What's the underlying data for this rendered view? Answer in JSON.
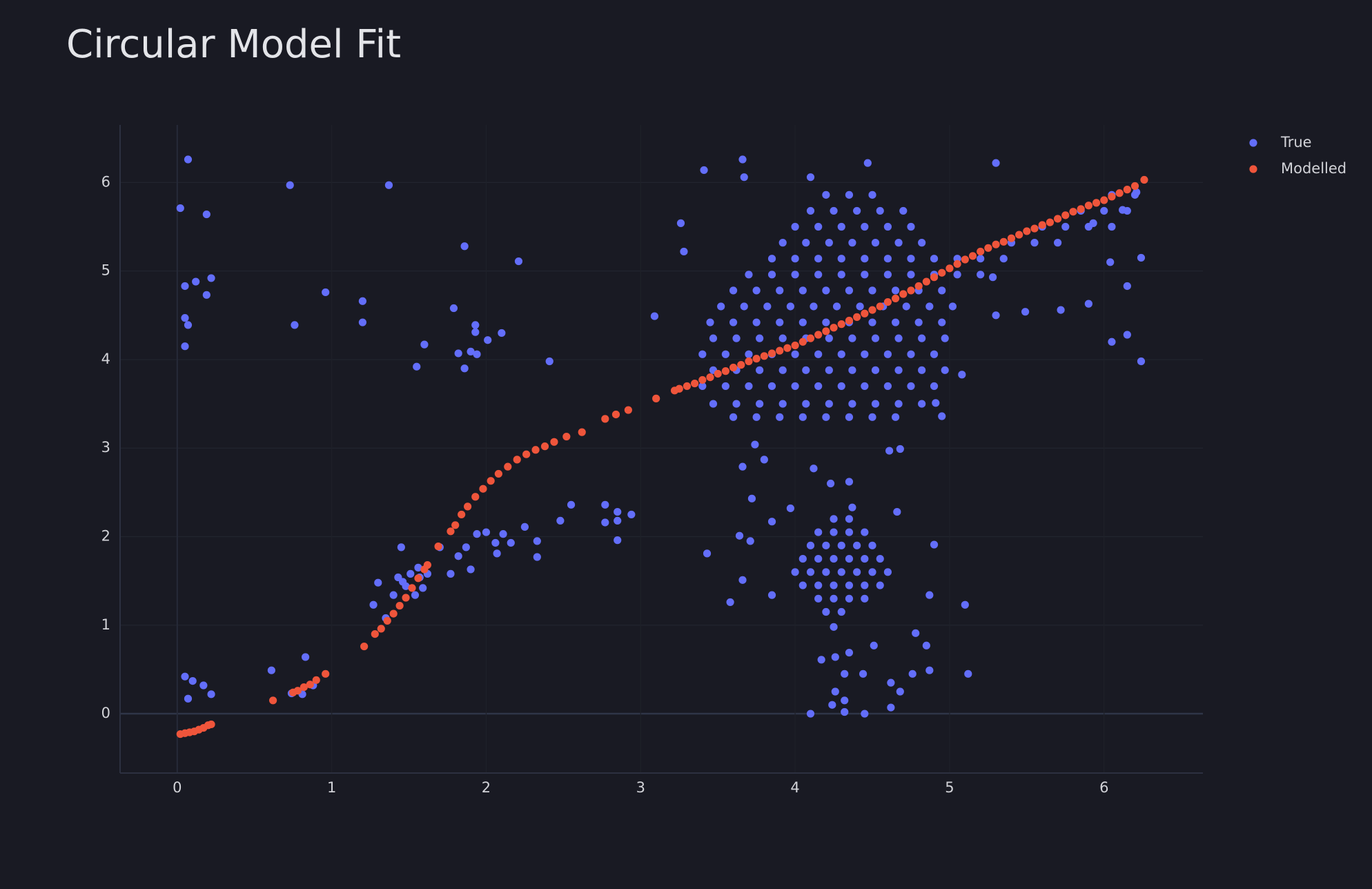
{
  "chart_data": {
    "type": "scatter",
    "title": "Circular Model Fit",
    "xlim": [
      -0.37,
      6.64
    ],
    "ylim": [
      -0.67,
      6.65
    ],
    "xticks": [
      0,
      1,
      2,
      3,
      4,
      5,
      6
    ],
    "yticks": [
      0,
      1,
      2,
      3,
      4,
      5,
      6
    ],
    "grid": true,
    "legend": "right",
    "series": [
      {
        "name": "True",
        "color": "#636efa",
        "x": [
          0.02,
          0.07,
          0.19,
          0.05,
          0.12,
          0.22,
          0.19,
          0.05,
          0.07,
          0.05,
          0.73,
          1.37,
          0.96,
          0.76,
          1.2,
          1.2,
          1.86,
          2.21,
          1.79,
          1.93,
          1.93,
          2.01,
          2.1,
          1.82,
          1.9,
          1.94,
          1.86,
          1.6,
          1.55,
          2.41,
          3.09,
          0.05,
          0.1,
          0.17,
          0.22,
          0.07,
          0.61,
          0.83,
          0.74,
          0.81,
          0.88,
          1.45,
          1.3,
          1.27,
          1.35,
          1.4,
          1.46,
          1.51,
          1.56,
          1.59,
          1.54,
          1.48,
          1.62,
          1.43,
          1.57,
          1.7,
          1.77,
          1.82,
          1.87,
          1.9,
          1.94,
          2.0,
          2.06,
          2.07,
          2.11,
          2.16,
          2.25,
          2.33,
          2.33,
          2.48,
          2.55,
          2.77,
          2.85,
          2.85,
          2.94,
          2.85,
          2.77,
          3.6,
          3.75,
          3.9,
          4.05,
          4.2,
          4.35,
          4.5,
          4.65,
          3.47,
          3.62,
          3.77,
          3.92,
          4.07,
          4.22,
          4.37,
          4.52,
          4.67,
          4.82,
          3.4,
          3.55,
          3.7,
          3.85,
          4.0,
          4.15,
          4.3,
          4.45,
          4.6,
          4.75,
          4.9,
          3.47,
          3.62,
          3.77,
          3.92,
          4.07,
          4.22,
          4.37,
          4.52,
          4.67,
          4.82,
          4.97,
          3.4,
          3.55,
          3.7,
          3.85,
          4.0,
          4.15,
          4.3,
          4.45,
          4.6,
          4.75,
          4.9,
          3.47,
          3.62,
          3.77,
          3.92,
          4.07,
          4.22,
          4.37,
          4.52,
          4.67,
          4.82,
          4.97,
          3.45,
          3.6,
          3.75,
          3.9,
          4.05,
          4.2,
          4.35,
          4.5,
          4.65,
          4.8,
          4.95,
          3.52,
          3.67,
          3.82,
          3.97,
          4.12,
          4.27,
          4.42,
          4.57,
          4.72,
          4.87,
          5.02,
          3.6,
          3.75,
          3.9,
          4.05,
          4.2,
          4.35,
          4.5,
          4.65,
          4.8,
          4.95,
          3.7,
          3.85,
          4.0,
          4.15,
          4.3,
          4.45,
          4.6,
          4.75,
          4.9,
          5.05,
          5.2,
          3.85,
          4.0,
          4.15,
          4.3,
          4.45,
          4.6,
          4.75,
          4.9,
          5.05,
          5.2,
          5.35,
          3.92,
          4.07,
          4.22,
          4.37,
          4.52,
          4.67,
          4.82,
          5.4,
          5.55,
          5.7,
          4.0,
          4.15,
          4.3,
          4.45,
          4.6,
          4.75,
          5.6,
          5.75,
          5.9,
          6.05,
          4.1,
          4.25,
          4.4,
          4.55,
          4.7,
          5.85,
          6.0,
          6.15,
          4.2,
          4.35,
          4.5,
          6.05,
          6.2,
          3.41,
          3.66,
          3.67,
          4.1,
          4.47,
          5.3,
          3.26,
          3.28,
          5.49,
          5.3,
          6.04,
          6.15,
          6.24,
          6.05,
          6.15,
          6.24,
          5.9,
          5.72,
          5.08,
          4.91,
          4.95,
          4.61,
          4.68,
          5.28,
          6.21,
          6.12,
          5.93,
          3.74,
          3.66,
          3.8,
          3.72,
          3.85,
          3.97,
          3.43,
          3.64,
          3.71,
          3.66,
          3.58,
          3.85,
          4.12,
          4.23,
          4.35,
          4.37,
          4.66,
          4.9,
          4.87,
          5.1,
          4.78,
          4.85,
          4.87,
          5.12,
          4.76,
          4.62,
          4.68,
          4.62,
          4.17,
          4.26,
          4.35,
          4.51,
          4.44,
          4.32,
          4.26,
          4.32,
          4.24,
          4.1,
          4.32,
          4.45,
          4.15,
          4.25,
          4.35,
          4.45,
          4.05,
          4.15,
          4.25,
          4.35,
          4.45,
          4.55,
          4.0,
          4.1,
          4.2,
          4.3,
          4.4,
          4.5,
          4.6,
          4.05,
          4.15,
          4.25,
          4.35,
          4.45,
          4.55,
          4.1,
          4.2,
          4.3,
          4.4,
          4.5,
          4.15,
          4.25,
          4.35,
          4.45,
          4.25,
          4.35,
          4.2,
          4.3,
          4.25
        ],
        "values": [
          5.71,
          6.26,
          5.64,
          4.83,
          4.88,
          4.92,
          4.73,
          4.47,
          4.39,
          4.15,
          5.97,
          5.97,
          4.76,
          4.39,
          4.66,
          4.42,
          5.28,
          5.11,
          4.58,
          4.39,
          4.31,
          4.22,
          4.3,
          4.07,
          4.09,
          4.06,
          3.9,
          4.17,
          3.92,
          3.98,
          4.49,
          0.42,
          0.37,
          0.32,
          0.22,
          0.17,
          0.49,
          0.64,
          0.23,
          0.22,
          0.32,
          1.88,
          1.48,
          1.23,
          1.08,
          1.34,
          1.49,
          1.58,
          1.65,
          1.42,
          1.34,
          1.44,
          1.58,
          1.54,
          1.54,
          1.88,
          1.58,
          1.78,
          1.88,
          1.63,
          2.03,
          2.05,
          1.93,
          1.81,
          2.03,
          1.93,
          2.11,
          1.95,
          1.77,
          2.18,
          2.36,
          2.36,
          2.28,
          2.18,
          2.25,
          1.96,
          2.16,
          3.35,
          3.35,
          3.35,
          3.35,
          3.35,
          3.35,
          3.35,
          3.35,
          3.5,
          3.5,
          3.5,
          3.5,
          3.5,
          3.5,
          3.5,
          3.5,
          3.5,
          3.5,
          3.7,
          3.7,
          3.7,
          3.7,
          3.7,
          3.7,
          3.7,
          3.7,
          3.7,
          3.7,
          3.7,
          3.88,
          3.88,
          3.88,
          3.88,
          3.88,
          3.88,
          3.88,
          3.88,
          3.88,
          3.88,
          3.88,
          4.06,
          4.06,
          4.06,
          4.06,
          4.06,
          4.06,
          4.06,
          4.06,
          4.06,
          4.06,
          4.06,
          4.24,
          4.24,
          4.24,
          4.24,
          4.24,
          4.24,
          4.24,
          4.24,
          4.24,
          4.24,
          4.24,
          4.42,
          4.42,
          4.42,
          4.42,
          4.42,
          4.42,
          4.42,
          4.42,
          4.42,
          4.42,
          4.42,
          4.6,
          4.6,
          4.6,
          4.6,
          4.6,
          4.6,
          4.6,
          4.6,
          4.6,
          4.6,
          4.6,
          4.78,
          4.78,
          4.78,
          4.78,
          4.78,
          4.78,
          4.78,
          4.78,
          4.78,
          4.78,
          4.96,
          4.96,
          4.96,
          4.96,
          4.96,
          4.96,
          4.96,
          4.96,
          4.96,
          4.96,
          4.96,
          5.14,
          5.14,
          5.14,
          5.14,
          5.14,
          5.14,
          5.14,
          5.14,
          5.14,
          5.14,
          5.14,
          5.32,
          5.32,
          5.32,
          5.32,
          5.32,
          5.32,
          5.32,
          5.32,
          5.32,
          5.32,
          5.5,
          5.5,
          5.5,
          5.5,
          5.5,
          5.5,
          5.5,
          5.5,
          5.5,
          5.5,
          5.68,
          5.68,
          5.68,
          5.68,
          5.68,
          5.68,
          5.68,
          5.68,
          5.86,
          5.86,
          5.86,
          5.86,
          5.86,
          6.14,
          6.26,
          6.06,
          6.06,
          6.22,
          6.22,
          5.54,
          5.22,
          4.54,
          4.5,
          5.1,
          4.83,
          5.15,
          4.2,
          4.28,
          3.98,
          4.63,
          4.56,
          3.83,
          3.51,
          3.36,
          2.97,
          2.99,
          4.93,
          5.89,
          5.69,
          5.54,
          3.04,
          2.79,
          2.87,
          2.43,
          2.17,
          2.32,
          1.81,
          2.01,
          1.95,
          1.51,
          1.26,
          1.34,
          2.77,
          2.6,
          2.62,
          2.33,
          2.28,
          1.91,
          1.34,
          1.23,
          0.91,
          0.77,
          0.49,
          0.45,
          0.45,
          0.35,
          0.25,
          0.07,
          0.61,
          0.64,
          0.69,
          0.77,
          0.45,
          0.45,
          0.25,
          0.15,
          0.1,
          0,
          0.02,
          0,
          1.3,
          1.3,
          1.3,
          1.3,
          1.45,
          1.45,
          1.45,
          1.45,
          1.45,
          1.45,
          1.6,
          1.6,
          1.6,
          1.6,
          1.6,
          1.6,
          1.6,
          1.75,
          1.75,
          1.75,
          1.75,
          1.75,
          1.75,
          1.9,
          1.9,
          1.9,
          1.9,
          1.9,
          2.05,
          2.05,
          2.05,
          2.05,
          2.2,
          2.2,
          1.15,
          1.15,
          0.98
        ]
      },
      {
        "name": "Modelled",
        "color": "#ef553b",
        "x": [
          0.02,
          0.05,
          0.08,
          0.11,
          0.14,
          0.17,
          0.2,
          0.22,
          0.62,
          0.75,
          0.78,
          0.82,
          0.86,
          0.9,
          0.96,
          1.21,
          1.28,
          1.32,
          1.36,
          1.4,
          1.44,
          1.48,
          1.52,
          1.56,
          1.6,
          1.62,
          1.69,
          1.77,
          1.8,
          1.84,
          1.88,
          1.93,
          1.98,
          2.03,
          2.08,
          2.14,
          2.2,
          2.26,
          2.32,
          2.38,
          2.44,
          2.52,
          2.62,
          2.77,
          2.84,
          2.92,
          3.1,
          3.22,
          3.25,
          3.3,
          3.35,
          3.4,
          3.45,
          3.5,
          3.55,
          3.6,
          3.65,
          3.7,
          3.75,
          3.8,
          3.85,
          3.9,
          3.95,
          4.0,
          4.05,
          4.1,
          4.15,
          4.2,
          4.25,
          4.3,
          4.35,
          4.4,
          4.45,
          4.5,
          4.55,
          4.6,
          4.65,
          4.7,
          4.75,
          4.8,
          4.85,
          4.9,
          4.95,
          5.0,
          5.05,
          5.1,
          5.15,
          5.2,
          5.25,
          5.3,
          5.35,
          5.4,
          5.45,
          5.5,
          5.55,
          5.6,
          5.65,
          5.7,
          5.75,
          5.8,
          5.85,
          5.9,
          5.95,
          6.0,
          6.05,
          6.1,
          6.15,
          6.2,
          6.26
        ],
        "values": [
          -0.23,
          -0.22,
          -0.21,
          -0.2,
          -0.18,
          -0.16,
          -0.13,
          -0.12,
          0.15,
          0.24,
          0.26,
          0.3,
          0.33,
          0.38,
          0.45,
          0.76,
          0.9,
          0.96,
          1.05,
          1.13,
          1.22,
          1.31,
          1.42,
          1.53,
          1.63,
          1.68,
          1.89,
          2.06,
          2.13,
          2.25,
          2.34,
          2.45,
          2.54,
          2.63,
          2.71,
          2.79,
          2.87,
          2.93,
          2.98,
          3.02,
          3.07,
          3.13,
          3.18,
          3.33,
          3.38,
          3.43,
          3.56,
          3.65,
          3.67,
          3.7,
          3.73,
          3.77,
          3.8,
          3.84,
          3.87,
          3.91,
          3.94,
          3.98,
          4.01,
          4.04,
          4.07,
          4.1,
          4.13,
          4.16,
          4.2,
          4.24,
          4.28,
          4.32,
          4.36,
          4.4,
          4.44,
          4.48,
          4.52,
          4.56,
          4.6,
          4.65,
          4.69,
          4.74,
          4.78,
          4.83,
          4.88,
          4.93,
          4.98,
          5.03,
          5.08,
          5.13,
          5.17,
          5.22,
          5.26,
          5.3,
          5.33,
          5.37,
          5.41,
          5.45,
          5.48,
          5.52,
          5.55,
          5.59,
          5.63,
          5.67,
          5.7,
          5.74,
          5.77,
          5.8,
          5.84,
          5.88,
          5.92,
          5.96,
          6.03
        ]
      }
    ]
  }
}
